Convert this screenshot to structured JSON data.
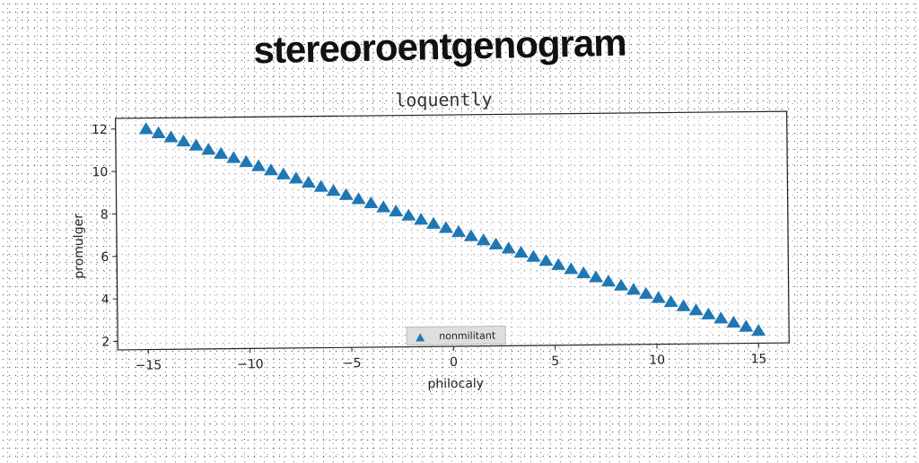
{
  "header": {
    "title": "stereoroentgenogram"
  },
  "chart_data": {
    "type": "scatter",
    "title": "loquently",
    "xlabel": "philocaly",
    "ylabel": "promulger",
    "xlim": [
      -16.5,
      16.5
    ],
    "ylim": [
      1.6,
      12.5
    ],
    "xticks": [
      -15,
      -10,
      -5,
      0,
      5,
      10,
      15
    ],
    "xtick_labels": [
      "−15",
      "−10",
      "−5",
      "0",
      "5",
      "10",
      "15"
    ],
    "yticks": [
      2,
      4,
      6,
      8,
      10,
      12
    ],
    "ytick_labels": [
      "2",
      "4",
      "6",
      "8",
      "10",
      "12"
    ],
    "grid": false,
    "legend_position": "lower center",
    "series": [
      {
        "name": "nonmilitant",
        "marker": "triangle-up",
        "color": "#1f77b4",
        "x": [
          -15.0,
          -14.39,
          -13.78,
          -13.16,
          -12.55,
          -11.94,
          -11.33,
          -10.71,
          -10.1,
          -9.49,
          -8.88,
          -8.27,
          -7.65,
          -7.04,
          -6.43,
          -5.82,
          -5.2,
          -4.59,
          -3.98,
          -3.37,
          -2.76,
          -2.14,
          -1.53,
          -0.92,
          -0.31,
          0.31,
          0.92,
          1.53,
          2.14,
          2.76,
          3.37,
          3.98,
          4.59,
          5.2,
          5.82,
          6.43,
          7.04,
          7.65,
          8.27,
          8.88,
          9.49,
          10.1,
          10.71,
          11.33,
          11.94,
          12.55,
          13.16,
          13.78,
          14.39,
          15.0
        ],
        "y": [
          12.0,
          11.8,
          11.6,
          11.4,
          11.2,
          11.0,
          10.8,
          10.6,
          10.4,
          10.2,
          10.0,
          9.8,
          9.6,
          9.4,
          9.2,
          9.0,
          8.8,
          8.6,
          8.4,
          8.2,
          8.0,
          7.8,
          7.6,
          7.4,
          7.2,
          7.0,
          6.8,
          6.6,
          6.4,
          6.2,
          6.0,
          5.8,
          5.6,
          5.4,
          5.2,
          5.0,
          4.8,
          4.6,
          4.4,
          4.2,
          4.0,
          3.8,
          3.6,
          3.4,
          3.2,
          3.0,
          2.8,
          2.6,
          2.4,
          2.2
        ]
      }
    ]
  }
}
